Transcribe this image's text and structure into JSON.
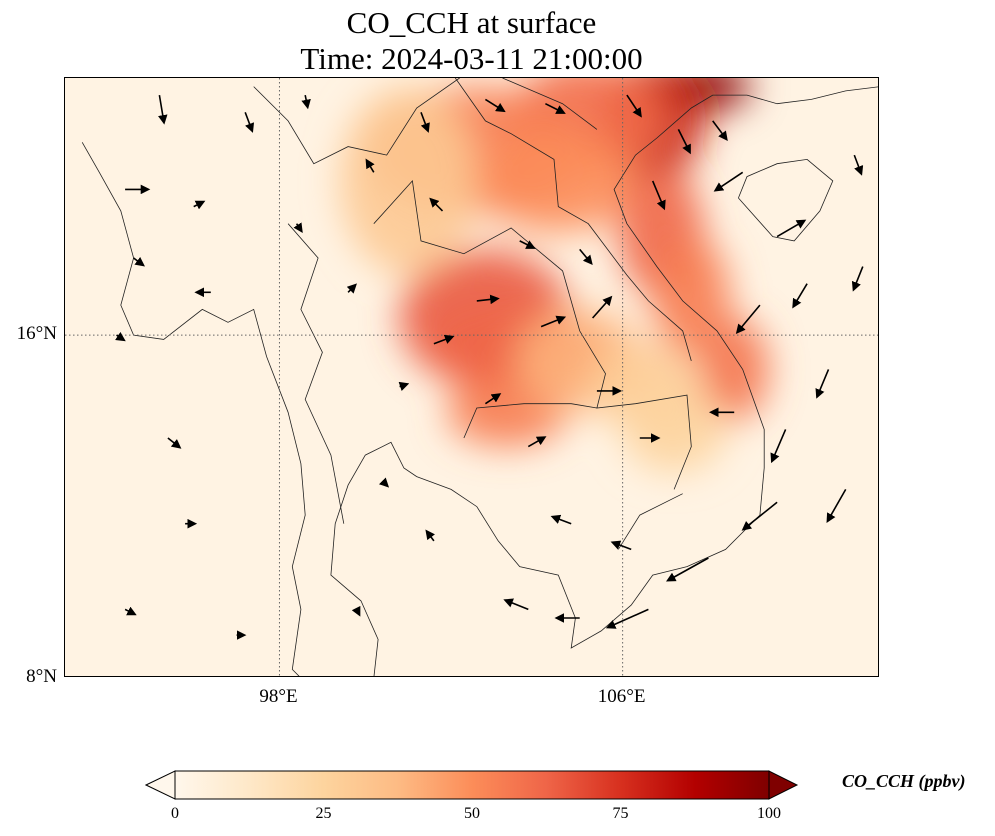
{
  "title": {
    "line1": "CO_CCH at surface",
    "line2": "Time: 2024-03-11 21:00:00"
  },
  "map": {
    "projection": "PlateCarree",
    "lon_range": [
      93,
      112
    ],
    "lat_range": [
      8,
      22
    ],
    "gridlines": "dotted",
    "lat_ticks": [
      {
        "value": 16,
        "label": "16°N"
      },
      {
        "value": 8,
        "label": "8°N"
      }
    ],
    "lon_ticks": [
      {
        "value": 98,
        "label": "98°E"
      },
      {
        "value": 106,
        "label": "106°E"
      }
    ],
    "field": "CO_CCH",
    "overlay": "surface wind vectors (quiver)"
  },
  "colorbar": {
    "label": "CO_CCH (ppbv)",
    "colormap": "OrRd",
    "min": 0,
    "max": 100,
    "extend": "both",
    "ticks": [
      {
        "value": 0,
        "label": "0"
      },
      {
        "value": 25,
        "label": "25"
      },
      {
        "value": 50,
        "label": "50"
      },
      {
        "value": 75,
        "label": "75"
      },
      {
        "value": 100,
        "label": "100"
      }
    ],
    "colors": [
      "#fff7ec",
      "#fee8c8",
      "#fdd49e",
      "#fdbb84",
      "#fc8d59",
      "#ef6548",
      "#d7301f",
      "#b30000",
      "#7f0000"
    ]
  },
  "plumes": [
    {
      "lon": 107.7,
      "lat": 21.8,
      "value": 98,
      "rlon": 1.3,
      "rlat": 0.6
    },
    {
      "lon": 106.7,
      "lat": 21.0,
      "value": 80,
      "rlon": 1.2,
      "rlat": 1.4
    },
    {
      "lon": 105.2,
      "lat": 21.1,
      "value": 60,
      "rlon": 1.8,
      "rlat": 1.3
    },
    {
      "lon": 102.5,
      "lat": 20.3,
      "value": 55,
      "rlon": 2.5,
      "rlat": 1.5
    },
    {
      "lon": 104.5,
      "lat": 19.6,
      "value": 50,
      "rlon": 1.8,
      "rlat": 1.2
    },
    {
      "lon": 106.9,
      "lat": 18.4,
      "value": 62,
      "rlon": 1.0,
      "rlat": 1.5
    },
    {
      "lon": 107.6,
      "lat": 16.9,
      "value": 55,
      "rlon": 0.9,
      "rlat": 1.4
    },
    {
      "lon": 108.6,
      "lat": 15.2,
      "value": 58,
      "rlon": 0.8,
      "rlat": 1.2
    },
    {
      "lon": 102.8,
      "lat": 16.4,
      "value": 65,
      "rlon": 2.0,
      "rlat": 1.6
    },
    {
      "lon": 103.5,
      "lat": 15.6,
      "value": 62,
      "rlon": 2.0,
      "rlat": 1.0
    },
    {
      "lon": 103.3,
      "lat": 14.2,
      "value": 55,
      "rlon": 1.4,
      "rlat": 0.8
    },
    {
      "lon": 105.0,
      "lat": 15.4,
      "value": 40,
      "rlon": 1.5,
      "rlat": 1.2
    },
    {
      "lon": 106.5,
      "lat": 14.8,
      "value": 28,
      "rlon": 1.3,
      "rlat": 1.0
    },
    {
      "lon": 101.0,
      "lat": 19.6,
      "value": 30,
      "rlon": 1.6,
      "rlat": 2.2
    },
    {
      "lon": 107.2,
      "lat": 13.8,
      "value": 25,
      "rlon": 1.2,
      "rlat": 1.0
    }
  ],
  "winds": [
    {
      "lon": 95.2,
      "lat": 21.6,
      "u": 0.2,
      "v": -1.2
    },
    {
      "lon": 97.2,
      "lat": 21.2,
      "u": 0.3,
      "v": -0.8
    },
    {
      "lon": 98.6,
      "lat": 21.6,
      "u": 0.1,
      "v": -0.5
    },
    {
      "lon": 94.4,
      "lat": 19.4,
      "u": 1.0,
      "v": 0.0
    },
    {
      "lon": 96.0,
      "lat": 19.0,
      "u": 0.4,
      "v": 0.2
    },
    {
      "lon": 94.6,
      "lat": 17.8,
      "u": 0.4,
      "v": -0.3
    },
    {
      "lon": 96.4,
      "lat": 17.0,
      "u": -0.6,
      "v": 0.0
    },
    {
      "lon": 94.2,
      "lat": 16.0,
      "u": 0.3,
      "v": -0.2
    },
    {
      "lon": 95.4,
      "lat": 13.6,
      "u": 0.5,
      "v": -0.4
    },
    {
      "lon": 95.8,
      "lat": 11.6,
      "u": 0.4,
      "v": 0.0
    },
    {
      "lon": 94.4,
      "lat": 9.6,
      "u": 0.4,
      "v": -0.2
    },
    {
      "lon": 97.0,
      "lat": 9.0,
      "u": 0.3,
      "v": 0.0
    },
    {
      "lon": 98.4,
      "lat": 18.6,
      "u": 0.2,
      "v": -0.3
    },
    {
      "lon": 99.6,
      "lat": 17.0,
      "u": 0.3,
      "v": 0.3
    },
    {
      "lon": 100.2,
      "lat": 19.8,
      "u": -0.3,
      "v": 0.5
    },
    {
      "lon": 101.3,
      "lat": 21.2,
      "u": 0.3,
      "v": -0.8
    },
    {
      "lon": 102.8,
      "lat": 21.5,
      "u": 0.8,
      "v": -0.5
    },
    {
      "lon": 104.2,
      "lat": 21.4,
      "u": 0.8,
      "v": -0.4
    },
    {
      "lon": 106.1,
      "lat": 21.6,
      "u": 0.6,
      "v": -0.9
    },
    {
      "lon": 107.3,
      "lat": 20.8,
      "u": 0.5,
      "v": -1.0
    },
    {
      "lon": 106.7,
      "lat": 19.6,
      "u": 0.5,
      "v": -1.2
    },
    {
      "lon": 101.8,
      "lat": 18.9,
      "u": -0.5,
      "v": 0.5
    },
    {
      "lon": 103.6,
      "lat": 18.2,
      "u": 0.6,
      "v": -0.3
    },
    {
      "lon": 105.0,
      "lat": 18.0,
      "u": 0.5,
      "v": -0.6
    },
    {
      "lon": 102.6,
      "lat": 16.8,
      "u": 0.9,
      "v": 0.1
    },
    {
      "lon": 104.1,
      "lat": 16.2,
      "u": 1.0,
      "v": 0.4
    },
    {
      "lon": 101.6,
      "lat": 15.8,
      "u": 0.8,
      "v": 0.3
    },
    {
      "lon": 105.3,
      "lat": 16.4,
      "u": 0.8,
      "v": 0.9
    },
    {
      "lon": 102.8,
      "lat": 14.4,
      "u": 0.6,
      "v": 0.4
    },
    {
      "lon": 103.8,
      "lat": 13.4,
      "u": 0.7,
      "v": 0.4
    },
    {
      "lon": 105.4,
      "lat": 14.7,
      "u": 1.0,
      "v": 0.0
    },
    {
      "lon": 106.4,
      "lat": 13.6,
      "u": 0.8,
      "v": 0.0
    },
    {
      "lon": 108.1,
      "lat": 21.0,
      "u": 0.6,
      "v": -0.8
    },
    {
      "lon": 108.8,
      "lat": 19.8,
      "u": -1.2,
      "v": -0.8
    },
    {
      "lon": 109.6,
      "lat": 18.3,
      "u": 1.2,
      "v": 0.7
    },
    {
      "lon": 110.3,
      "lat": 17.2,
      "u": -0.6,
      "v": -1.0
    },
    {
      "lon": 109.2,
      "lat": 16.7,
      "u": -1.0,
      "v": -1.2
    },
    {
      "lon": 110.8,
      "lat": 15.2,
      "u": -0.5,
      "v": -1.2
    },
    {
      "lon": 109.8,
      "lat": 13.8,
      "u": -0.6,
      "v": -1.4
    },
    {
      "lon": 111.2,
      "lat": 12.4,
      "u": -0.8,
      "v": -1.4
    },
    {
      "lon": 109.6,
      "lat": 12.1,
      "u": -1.5,
      "v": -1.2
    },
    {
      "lon": 108.0,
      "lat": 10.8,
      "u": -1.8,
      "v": -1.0
    },
    {
      "lon": 106.6,
      "lat": 9.6,
      "u": -1.8,
      "v": -0.8
    },
    {
      "lon": 105.0,
      "lat": 9.4,
      "u": -1.0,
      "v": 0.0
    },
    {
      "lon": 103.8,
      "lat": 9.6,
      "u": -1.0,
      "v": 0.4
    },
    {
      "lon": 101.6,
      "lat": 11.2,
      "u": -0.3,
      "v": 0.4
    },
    {
      "lon": 100.4,
      "lat": 12.6,
      "u": 0.2,
      "v": -0.2
    },
    {
      "lon": 99.8,
      "lat": 9.6,
      "u": 0.1,
      "v": -0.2
    },
    {
      "lon": 108.6,
      "lat": 14.2,
      "u": -1.0,
      "v": 0.0
    },
    {
      "lon": 111.4,
      "lat": 20.2,
      "u": 0.3,
      "v": -0.8
    },
    {
      "lon": 111.6,
      "lat": 17.6,
      "u": -0.4,
      "v": -1.0
    },
    {
      "lon": 104.8,
      "lat": 11.6,
      "u": -0.8,
      "v": 0.3
    },
    {
      "lon": 106.2,
      "lat": 11.0,
      "u": -0.8,
      "v": 0.3
    },
    {
      "lon": 100.8,
      "lat": 14.8,
      "u": 0.3,
      "v": 0.1
    }
  ]
}
